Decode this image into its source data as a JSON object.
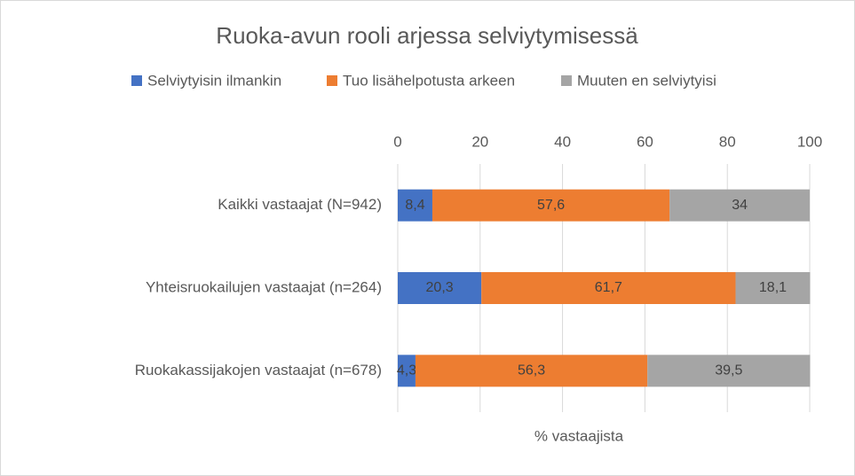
{
  "chart_data": {
    "type": "bar",
    "orientation": "horizontal",
    "stacked": true,
    "title": "Ruoka-avun rooli arjessa selviytymisessä",
    "x_label": "% vastaajista",
    "categories": [
      "Kaikki vastaajat (N=942)",
      "Yhteisruokailujen vastaajat (n=264)",
      "Ruokakassijakojen vastaajat (n=678)"
    ],
    "series": [
      {
        "name": "Selviytyisin ilmankin",
        "color": "#4472c4",
        "values": [
          8.4,
          20.3,
          4.3
        ],
        "value_labels": [
          "8,4",
          "20,3",
          "4,3"
        ]
      },
      {
        "name": "Tuo lisähelpotusta arkeen",
        "color": "#ed7d31",
        "values": [
          57.6,
          61.7,
          56.3
        ],
        "value_labels": [
          "57,6",
          "61,7",
          "56,3"
        ]
      },
      {
        "name": "Muuten en selviytyisi",
        "color": "#a5a5a5",
        "values": [
          34,
          18.1,
          39.5
        ],
        "value_labels": [
          "34",
          "18,1",
          "39,5"
        ]
      }
    ],
    "xlim": [
      0,
      100
    ],
    "xticks": [
      0,
      20,
      40,
      60,
      80,
      100
    ],
    "grid": true,
    "legend": "top"
  }
}
